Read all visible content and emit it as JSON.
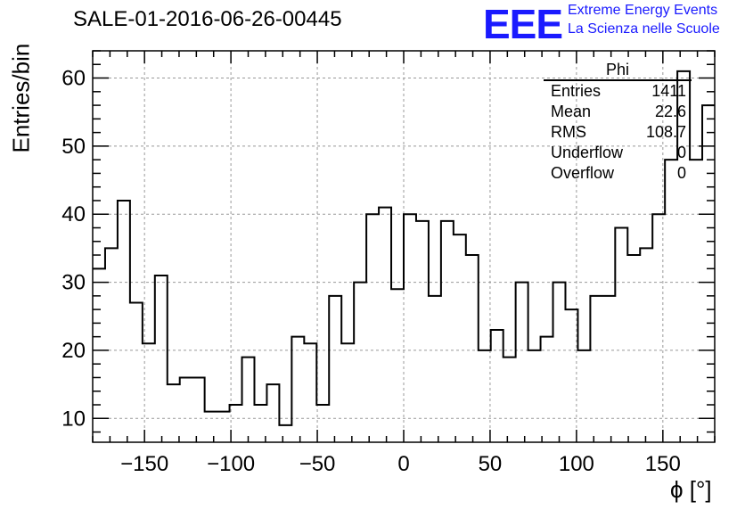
{
  "title": "SALE-01-2016-06-26-00445",
  "logo": {
    "mark": "EEE",
    "line1": "Extreme Energy Events",
    "line2": "La Scienza nelle Scuole",
    "color": "#1a1aff"
  },
  "stats_box": {
    "title": "Phi",
    "rows": [
      {
        "key": "Entries",
        "value": "1411"
      },
      {
        "key": "Mean",
        "value": "22.6"
      },
      {
        "key": "RMS",
        "value": "108.7"
      },
      {
        "key": "Underflow",
        "value": "0"
      },
      {
        "key": "Overflow",
        "value": "0"
      }
    ]
  },
  "chart_data": {
    "type": "histogram",
    "title": "SALE-01-2016-06-26-00445",
    "xlabel": "ϕ [°]",
    "ylabel": "Entries/bin",
    "xlim": [
      -180,
      180
    ],
    "ylim": [
      6.5,
      64
    ],
    "bin_width": 7.2,
    "grid": true,
    "x_ticks": [
      -150,
      -100,
      -50,
      0,
      50,
      100,
      150
    ],
    "x_tick_labels": [
      "−150",
      "−100",
      "−50",
      "0",
      "50",
      "100",
      "150"
    ],
    "y_ticks": [
      10,
      20,
      30,
      40,
      50,
      60
    ],
    "y_tick_labels": [
      "10",
      "20",
      "30",
      "40",
      "50",
      "60"
    ],
    "values": [
      32,
      35,
      42,
      27,
      21,
      31,
      15,
      16,
      16,
      11,
      11,
      12,
      19,
      12,
      15,
      9,
      22,
      21,
      12,
      28,
      21,
      30,
      40,
      41,
      29,
      40,
      39,
      28,
      39,
      37,
      34,
      20,
      23,
      19,
      30,
      20,
      22,
      30,
      26,
      20,
      28,
      28,
      38,
      34,
      35,
      40,
      48,
      61,
      48,
      56
    ]
  }
}
